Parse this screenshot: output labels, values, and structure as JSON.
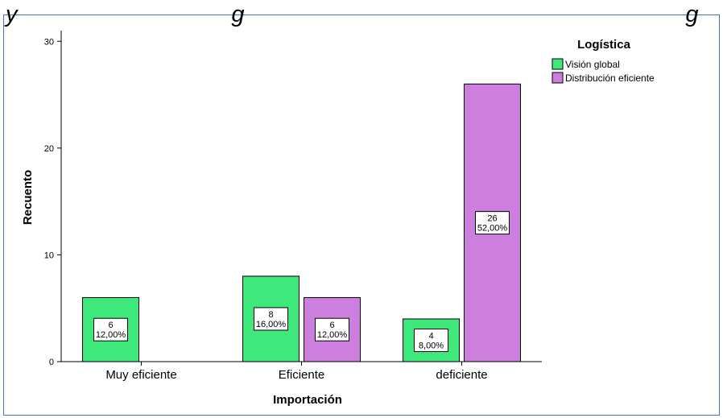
{
  "heading_fragment": "y   ... g       ...     g",
  "chart_data": {
    "type": "bar",
    "categories": [
      "Muy eficiente",
      "Eficiente",
      "deficiente"
    ],
    "series": [
      {
        "name": "Visión global",
        "values": [
          6,
          8,
          4
        ],
        "percent_labels": [
          "12,00%",
          "16,00%",
          "8,00%"
        ],
        "color": "#3ee87a"
      },
      {
        "name": "Distribución eficiente",
        "values": [
          0,
          6,
          26
        ],
        "percent_labels": [
          "",
          "12,00%",
          "52,00%"
        ],
        "color": "#cd7fe0"
      }
    ],
    "xlabel": "Importación",
    "ylabel": "Recuento",
    "ylim": [
      0,
      31
    ],
    "yticks": [
      0,
      10,
      20,
      30
    ],
    "legend_title": "Logística",
    "legend_position": "top-right",
    "grid": false
  }
}
